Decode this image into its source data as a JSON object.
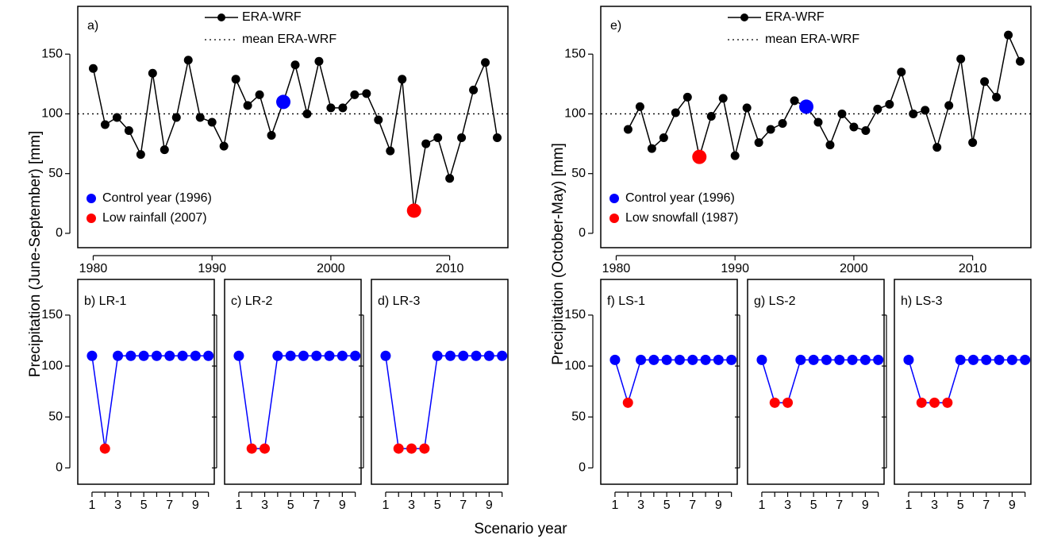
{
  "shared_xlabel": "Scenario year",
  "chart_data": [
    {
      "type": "line",
      "title": "a)",
      "ylabel": "Precipitation (June-September) [mm]",
      "xlim": [
        1978.7,
        2014.9
      ],
      "xticks": [
        1980,
        1990,
        2000,
        2010
      ],
      "ylim": [
        -12,
        190
      ],
      "yticks": [
        0,
        50,
        100,
        150
      ],
      "series": [
        {
          "name": "ERA-WRF",
          "color": "#000000",
          "x": [
            1980,
            1981,
            1982,
            1983,
            1984,
            1985,
            1986,
            1987,
            1988,
            1989,
            1990,
            1991,
            1992,
            1993,
            1994,
            1995,
            1996,
            1997,
            1998,
            1999,
            2000,
            2001,
            2002,
            2003,
            2004,
            2005,
            2006,
            2007,
            2008,
            2009,
            2010,
            2011,
            2012,
            2013,
            2014
          ],
          "values": [
            138,
            91,
            97,
            86,
            66,
            134,
            70,
            97,
            145,
            97,
            93,
            73,
            129,
            107,
            116,
            82,
            110,
            141,
            100,
            144,
            105,
            105,
            116,
            117,
            95,
            69,
            129,
            19,
            75,
            80,
            46,
            80,
            120,
            143,
            80
          ]
        }
      ],
      "mean": {
        "name": "mean ERA-WRF",
        "value": 100
      },
      "highlights": [
        {
          "name": "Control year (1996)",
          "color": "#0000ff",
          "x": [
            1996
          ],
          "values": [
            110
          ]
        },
        {
          "name": "Low rainfall (2007)",
          "color": "#ff0000",
          "x": [
            2007
          ],
          "values": [
            19
          ]
        }
      ]
    },
    {
      "type": "line",
      "title": "b) LR-1",
      "xlim": [
        -0.1,
        10.45
      ],
      "xticks": [
        1,
        3,
        5,
        7,
        9
      ],
      "xminor_ticks": [
        2,
        4,
        6,
        8,
        10
      ],
      "ylim": [
        -16,
        185
      ],
      "yticks": [
        0,
        50,
        100,
        150
      ],
      "ytick_labels": true,
      "series": [
        {
          "color": "#0000ff",
          "x": [
            1,
            2,
            3,
            4,
            5,
            6,
            7,
            8,
            9,
            10
          ],
          "values": [
            110,
            19,
            110,
            110,
            110,
            110,
            110,
            110,
            110,
            110
          ],
          "point_colors": [
            "#0000ff",
            "#ff0000",
            "#0000ff",
            "#0000ff",
            "#0000ff",
            "#0000ff",
            "#0000ff",
            "#0000ff",
            "#0000ff",
            "#0000ff"
          ]
        }
      ]
    },
    {
      "type": "line",
      "title": "c) LR-2",
      "xlim": [
        -0.1,
        10.45
      ],
      "xticks": [
        1,
        3,
        5,
        7,
        9
      ],
      "xminor_ticks": [
        2,
        4,
        6,
        8,
        10
      ],
      "ylim": [
        -16,
        185
      ],
      "yticks": [
        0,
        50,
        100,
        150
      ],
      "ytick_labels": false,
      "series": [
        {
          "color": "#0000ff",
          "x": [
            1,
            2,
            3,
            4,
            5,
            6,
            7,
            8,
            9,
            10
          ],
          "values": [
            110,
            19,
            19,
            110,
            110,
            110,
            110,
            110,
            110,
            110
          ],
          "point_colors": [
            "#0000ff",
            "#ff0000",
            "#ff0000",
            "#0000ff",
            "#0000ff",
            "#0000ff",
            "#0000ff",
            "#0000ff",
            "#0000ff",
            "#0000ff"
          ]
        }
      ]
    },
    {
      "type": "line",
      "title": "d) LR-3",
      "xlim": [
        -0.1,
        10.45
      ],
      "xticks": [
        1,
        3,
        5,
        7,
        9
      ],
      "xminor_ticks": [
        2,
        4,
        6,
        8,
        10
      ],
      "ylim": [
        -16,
        185
      ],
      "yticks": [
        0,
        50,
        100,
        150
      ],
      "ytick_labels": false,
      "series": [
        {
          "color": "#0000ff",
          "x": [
            1,
            2,
            3,
            4,
            5,
            6,
            7,
            8,
            9,
            10
          ],
          "values": [
            110,
            19,
            19,
            19,
            110,
            110,
            110,
            110,
            110,
            110
          ],
          "point_colors": [
            "#0000ff",
            "#ff0000",
            "#ff0000",
            "#ff0000",
            "#0000ff",
            "#0000ff",
            "#0000ff",
            "#0000ff",
            "#0000ff",
            "#0000ff"
          ]
        }
      ]
    },
    {
      "type": "line",
      "title": "e)",
      "ylabel": "Precipitation (October-May) [mm]",
      "xlim": [
        1978.7,
        2014.9
      ],
      "xticks": [
        1980,
        1990,
        2000,
        2010
      ],
      "ylim": [
        -12,
        190
      ],
      "yticks": [
        0,
        50,
        100,
        150
      ],
      "series": [
        {
          "name": "ERA-WRF",
          "color": "#000000",
          "x": [
            1981,
            1982,
            1983,
            1984,
            1985,
            1986,
            1987,
            1988,
            1989,
            1990,
            1991,
            1992,
            1993,
            1994,
            1995,
            1996,
            1997,
            1998,
            1999,
            2000,
            2001,
            2002,
            2003,
            2004,
            2005,
            2006,
            2007,
            2008,
            2009,
            2010,
            2011,
            2012,
            2013,
            2014
          ],
          "values": [
            87,
            106,
            71,
            80,
            101,
            114,
            64,
            98,
            113,
            65,
            105,
            76,
            87,
            92,
            111,
            106,
            93,
            74,
            100,
            89,
            86,
            104,
            108,
            135,
            100,
            103,
            72,
            107,
            146,
            76,
            127,
            114,
            166,
            144
          ]
        }
      ],
      "mean": {
        "name": "mean ERA-WRF",
        "value": 100
      },
      "highlights": [
        {
          "name": "Control year (1996)",
          "color": "#0000ff",
          "x": [
            1996
          ],
          "values": [
            106
          ]
        },
        {
          "name": "Low snowfall (1987)",
          "color": "#ff0000",
          "x": [
            1987
          ],
          "values": [
            64
          ]
        }
      ]
    },
    {
      "type": "line",
      "title": "f) LS-1",
      "xlim": [
        -0.1,
        10.45
      ],
      "xticks": [
        1,
        3,
        5,
        7,
        9
      ],
      "xminor_ticks": [
        2,
        4,
        6,
        8,
        10
      ],
      "ylim": [
        -16,
        185
      ],
      "yticks": [
        0,
        50,
        100,
        150
      ],
      "ytick_labels": true,
      "series": [
        {
          "color": "#0000ff",
          "x": [
            1,
            2,
            3,
            4,
            5,
            6,
            7,
            8,
            9,
            10
          ],
          "values": [
            106,
            64,
            106,
            106,
            106,
            106,
            106,
            106,
            106,
            106
          ],
          "point_colors": [
            "#0000ff",
            "#ff0000",
            "#0000ff",
            "#0000ff",
            "#0000ff",
            "#0000ff",
            "#0000ff",
            "#0000ff",
            "#0000ff",
            "#0000ff"
          ]
        }
      ]
    },
    {
      "type": "line",
      "title": "g) LS-2",
      "xlim": [
        -0.1,
        10.45
      ],
      "xticks": [
        1,
        3,
        5,
        7,
        9
      ],
      "xminor_ticks": [
        2,
        4,
        6,
        8,
        10
      ],
      "ylim": [
        -16,
        185
      ],
      "yticks": [
        0,
        50,
        100,
        150
      ],
      "ytick_labels": false,
      "series": [
        {
          "color": "#0000ff",
          "x": [
            1,
            2,
            3,
            4,
            5,
            6,
            7,
            8,
            9,
            10
          ],
          "values": [
            106,
            64,
            64,
            106,
            106,
            106,
            106,
            106,
            106,
            106
          ],
          "point_colors": [
            "#0000ff",
            "#ff0000",
            "#ff0000",
            "#0000ff",
            "#0000ff",
            "#0000ff",
            "#0000ff",
            "#0000ff",
            "#0000ff",
            "#0000ff"
          ]
        }
      ]
    },
    {
      "type": "line",
      "title": "h) LS-3",
      "xlim": [
        -0.1,
        10.45
      ],
      "xticks": [
        1,
        3,
        5,
        7,
        9
      ],
      "xminor_ticks": [
        2,
        4,
        6,
        8,
        10
      ],
      "ylim": [
        -16,
        185
      ],
      "yticks": [
        0,
        50,
        100,
        150
      ],
      "ytick_labels": false,
      "series": [
        {
          "color": "#0000ff",
          "x": [
            1,
            2,
            3,
            4,
            5,
            6,
            7,
            8,
            9,
            10
          ],
          "values": [
            106,
            64,
            64,
            64,
            106,
            106,
            106,
            106,
            106,
            106
          ],
          "point_colors": [
            "#0000ff",
            "#ff0000",
            "#ff0000",
            "#ff0000",
            "#0000ff",
            "#0000ff",
            "#0000ff",
            "#0000ff",
            "#0000ff",
            "#0000ff"
          ]
        }
      ]
    }
  ]
}
